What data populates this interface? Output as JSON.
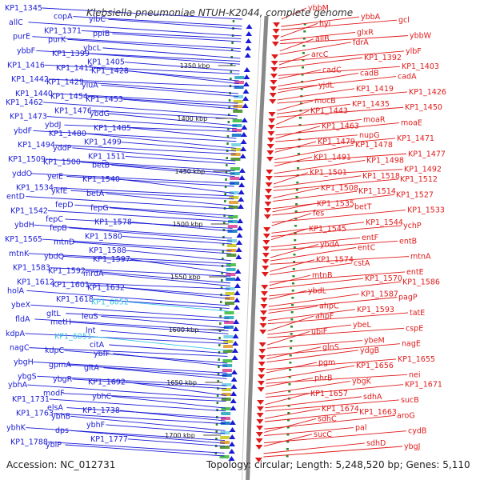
{
  "title": "Klebsiella pneumoniae NTUH-K2044, complete genome",
  "footer": {
    "accession": "Accession: NC_012731",
    "summary": "Topology: circular; Length: 5,248,520 bp; Genes: 5,110"
  },
  "colors": {
    "forward_strand": "#1a1ad6",
    "reverse_strand": "#e01a1a",
    "highlight_gene": "#33c3e6",
    "backbone": "#888888",
    "gc_track": "#2a8a2a"
  },
  "ruler": [
    "1350 kbp",
    "1400 kbp",
    "1450 kbp",
    "1500 kbp",
    "1550 kbp",
    "1600 kbp",
    "1650 kbp",
    "1700 kbp"
  ],
  "forward_genes": [
    "KP1_1345",
    "copA",
    "ylbC",
    "allC",
    "KP1_1371",
    "ppiB",
    "purE",
    "purK",
    "ybcL",
    "ybbF",
    "KP1_1399",
    "KP1_1405",
    "KP1_1416",
    "KP1_1415",
    "KP1_1428",
    "KP1_1442",
    "KP1_1429",
    "yiuA",
    "KP1_1440",
    "KP1_1454",
    "KP1_1453",
    "KP1_1462",
    "KP1_1476",
    "ybdG",
    "KP1_1473",
    "ybdJ",
    "KP1_1485",
    "ybdF",
    "KP1_1480",
    "KP1_1499",
    "KP1_1494",
    "yddP",
    "KP1_1511",
    "KP1_1509",
    "KP1_1500",
    "betB",
    "yddO",
    "yeiE",
    "KP1_1540",
    "KP1_1534",
    "ykfE",
    "betA",
    "entD",
    "fepD",
    "fepG",
    "KP1_1542",
    "fepC",
    "KP1_1578",
    "ybdH",
    "fepB",
    "KP1_1580",
    "KP1_1565",
    "mtnD",
    "KP1_1588",
    "mtnK",
    "ybdQ",
    "KP1_1597",
    "KP1_1583",
    "KP1_1592",
    "mrdA",
    "KP1_1612",
    "KP1_1601",
    "KP1_1632",
    "holA",
    "KP1_1618",
    "KP1_6052",
    "ybeX",
    "gltL",
    "leuS",
    "fldA",
    "metH",
    "lnt",
    "kdpA",
    "KP1_6051",
    "citA",
    "nagC",
    "kdpC",
    "ybfF",
    "ybgH",
    "gpmA",
    "gltA",
    "ybgS",
    "ybgR",
    "KP1_1692",
    "ybhA",
    "modF",
    "ybhC",
    "KP1_1731",
    "elsA",
    "KP1_1738",
    "KP1_1763",
    "ybhB",
    "ybhF",
    "ybhK",
    "dps",
    "KP1_1777",
    "KP1_1788",
    "ybiP"
  ],
  "reverse_genes": [
    "ybbM",
    "ybbA",
    "gcl",
    "hyi",
    "glxR",
    "ybbW",
    "allB",
    "fdrA",
    "ylbF",
    "arcC",
    "KP1_1392",
    "KP1_1403",
    "cadC",
    "cadB",
    "cadA",
    "yjdL",
    "KP1_1419",
    "KP1_1426",
    "mocB",
    "KP1_1435",
    "KP1_1450",
    "KP1_1443",
    "moaR",
    "moaE",
    "KP1_1463",
    "nupG",
    "KP1_1471",
    "KP1_1479",
    "KP1_1478",
    "KP1_1477",
    "KP1_1491",
    "KP1_1498",
    "KP1_1492",
    "KP1_1501",
    "KP1_1518",
    "KP1_1512",
    "KP1_1508",
    "KP1_1514",
    "KP1_1527",
    "KP1_1535",
    "betT",
    "KP1_1533",
    "fes",
    "KP1_1544",
    "ychP",
    "KP1_1545",
    "entF",
    "entB",
    "ybdA",
    "entC",
    "mtnA",
    "KP1_1574",
    "cstA",
    "entE",
    "mtnB",
    "KP1_1570",
    "KP1_1586",
    "ybdL",
    "KP1_1587",
    "pagP",
    "ahpC",
    "KP1_1593",
    "tatE",
    "ahpF",
    "ybeL",
    "cspE",
    "ubiF",
    "ybeM",
    "nagE",
    "glnS",
    "ydgB",
    "KP1_1655",
    "pgm",
    "KP1_1656",
    "nei",
    "phrB",
    "ybgK",
    "KP1_1671",
    "KP1_1657",
    "sdhA",
    "sucB",
    "KP1_1674",
    "KP1_1663",
    "aroG",
    "sdhC",
    "pal",
    "cydB",
    "sucC",
    "sdhD",
    "ybgJ"
  ],
  "highlight_forward": [
    "KP1_6052",
    "KP1_6051"
  ]
}
